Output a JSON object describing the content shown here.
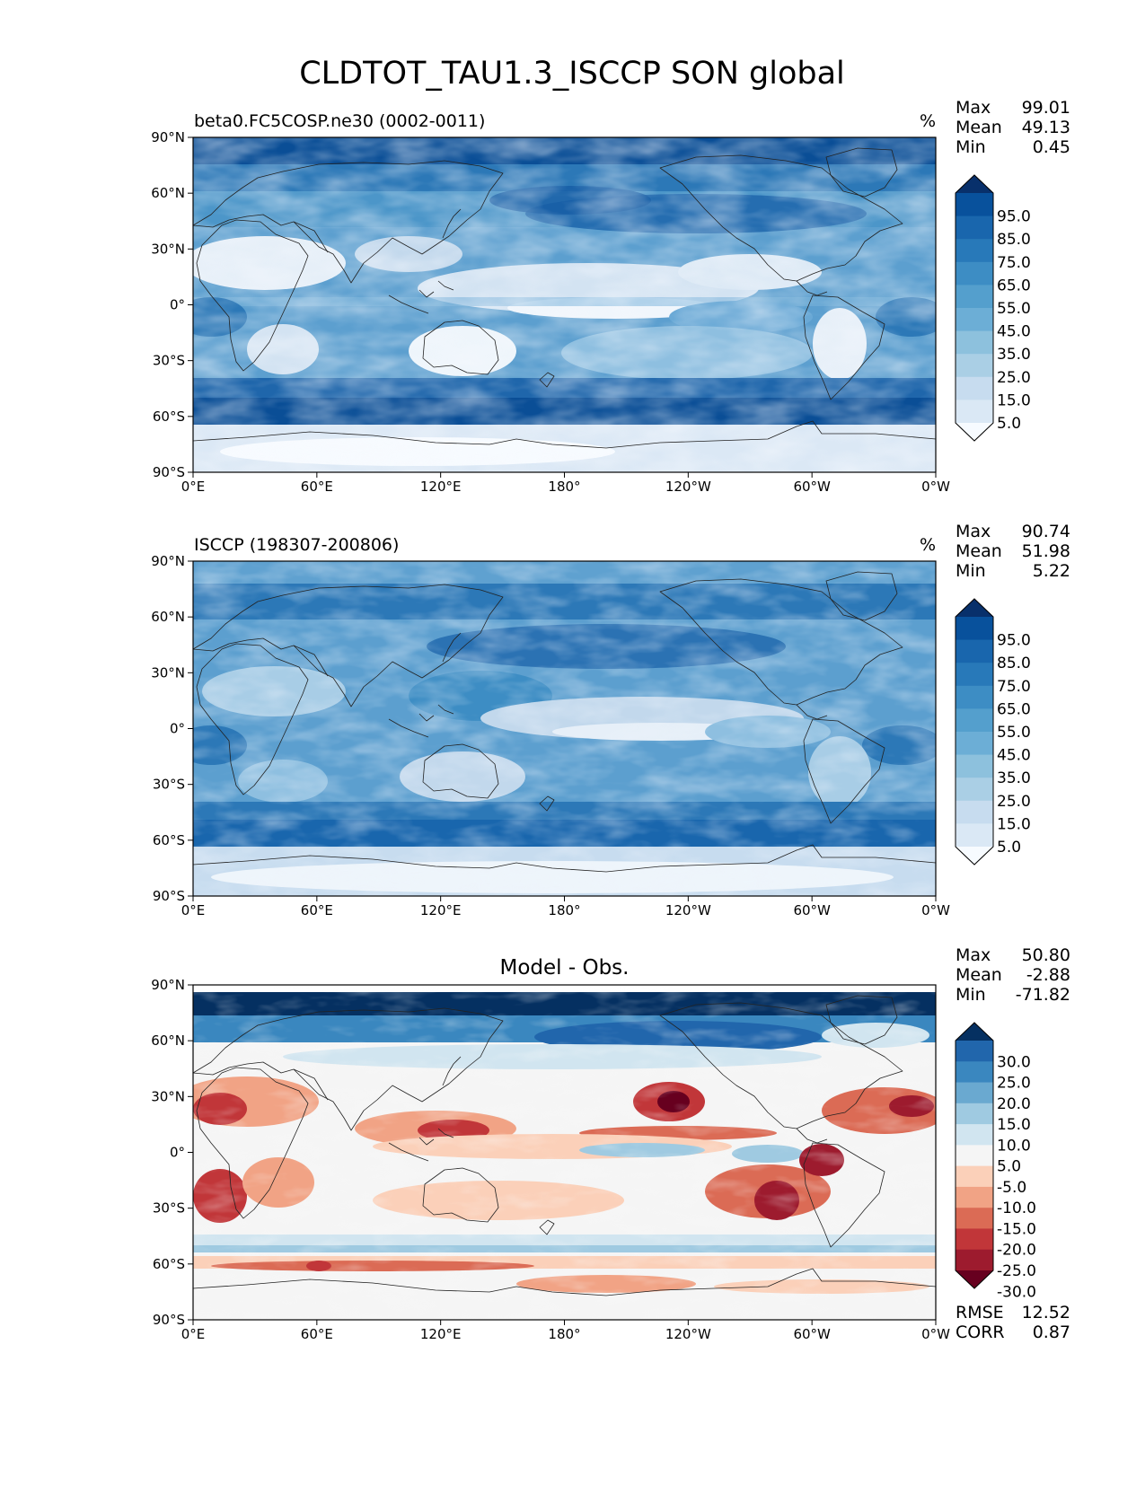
{
  "title": "CLDTOT_TAU1.3_ISCCP SON global",
  "x_ticks": [
    "0°E",
    "60°E",
    "120°E",
    "180°",
    "120°W",
    "60°W",
    "0°W"
  ],
  "y_ticks": [
    "90°N",
    "60°N",
    "30°N",
    "0°",
    "30°S",
    "60°S",
    "90°S"
  ],
  "stat_labels": {
    "max": "Max",
    "mean": "Mean",
    "min": "Min",
    "rmse": "RMSE",
    "corr": "CORR"
  },
  "panels": [
    {
      "label": "beta0.FC5COSP.ne30 (0002-0011)",
      "units": "%",
      "stats": {
        "max": "99.01",
        "mean": "49.13",
        "min": "0.45"
      },
      "colorbar": {
        "ticks": [
          "95.0",
          "85.0",
          "75.0",
          "65.0",
          "55.0",
          "45.0",
          "35.0",
          "25.0",
          "15.0",
          "5.0"
        ],
        "colors": [
          "#08306b",
          "#08519c",
          "#1966ad",
          "#2879b9",
          "#3d8dc4",
          "#549fcd",
          "#6caed6",
          "#8dc1dd",
          "#aacfe5",
          "#c7dcef",
          "#dae8f5",
          "#f7fbff"
        ]
      }
    },
    {
      "label": "ISCCP (198307-200806)",
      "units": "%",
      "stats": {
        "max": "90.74",
        "mean": "51.98",
        "min": "5.22"
      },
      "colorbar": {
        "ticks": [
          "95.0",
          "85.0",
          "75.0",
          "65.0",
          "55.0",
          "45.0",
          "35.0",
          "25.0",
          "15.0",
          "5.0"
        ],
        "colors": [
          "#08306b",
          "#08519c",
          "#1966ad",
          "#2879b9",
          "#3d8dc4",
          "#549fcd",
          "#6caed6",
          "#8dc1dd",
          "#aacfe5",
          "#c7dcef",
          "#dae8f5",
          "#f7fbff"
        ]
      }
    },
    {
      "label": "Model - Obs.",
      "units": "",
      "stats": {
        "max": "50.80",
        "mean": "-2.88",
        "min": "-71.82",
        "rmse": "12.52",
        "corr": "0.87"
      },
      "colorbar": {
        "ticks": [
          "30.0",
          "25.0",
          "20.0",
          "15.0",
          "10.0",
          "5.0",
          "-5.0",
          "-10.0",
          "-15.0",
          "-20.0",
          "-25.0",
          "-30.0"
        ],
        "colors": [
          "#053061",
          "#2166ac",
          "#3a87bf",
          "#6aa9d0",
          "#9fcae1",
          "#d1e5f0",
          "#f5f5f5",
          "#fbd0b9",
          "#f1a385",
          "#db6b55",
          "#c13639",
          "#9d1b2e",
          "#67001f"
        ]
      }
    }
  ],
  "chart_data": {
    "type": "heatmap",
    "title": "CLDTOT_TAU1.3_ISCCP SON global",
    "projection": "lat-lon",
    "xlim": [
      0,
      360
    ],
    "ylim": [
      -90,
      90
    ],
    "xticks": [
      0,
      60,
      120,
      180,
      240,
      300,
      360
    ],
    "yticks": [
      90,
      60,
      30,
      0,
      -30,
      -60,
      -90
    ],
    "series": [
      {
        "name": "beta0.FC5COSP.ne30 (0002-0011)",
        "units": "%",
        "max": 99.01,
        "mean": 49.13,
        "min": 0.45,
        "levels": [
          0,
          5,
          10,
          15,
          20,
          25,
          30,
          35,
          40,
          45,
          50,
          55,
          60,
          65,
          70,
          75,
          80,
          85,
          90,
          95,
          100
        ]
      },
      {
        "name": "ISCCP (198307-200806)",
        "units": "%",
        "max": 90.74,
        "mean": 51.98,
        "min": 5.22,
        "levels": [
          0,
          5,
          10,
          15,
          20,
          25,
          30,
          35,
          40,
          45,
          50,
          55,
          60,
          65,
          70,
          75,
          80,
          85,
          90,
          95,
          100
        ]
      },
      {
        "name": "Model - Obs.",
        "units": "%",
        "max": 50.8,
        "mean": -2.88,
        "min": -71.82,
        "rmse": 12.52,
        "corr": 0.87,
        "levels": [
          -30,
          -25,
          -20,
          -15,
          -10,
          -5,
          5,
          10,
          15,
          20,
          25,
          30
        ]
      }
    ]
  }
}
